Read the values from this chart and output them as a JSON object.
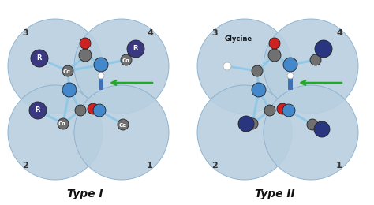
{
  "bg_color": "#ffffff",
  "bubble_color": "#b8cfe0",
  "bubble_edge": "#8aafcc",
  "title_I": "Type I",
  "title_II": "Type II",
  "label_glycine": "Glycine",
  "arrow_color": "#22aa22",
  "bond_color": "#90c8e8",
  "atom_N": "#4488cc",
  "atom_O": "#cc2222",
  "atom_C": "#707070",
  "atom_R": "#3a3880",
  "atom_R2": "#2a3580",
  "atom_H": "#ffffff",
  "hbond_color": "#3366aa",
  "font_size_title": 10,
  "font_size_num": 8,
  "font_size_ca": 5,
  "font_size_glycine": 6
}
